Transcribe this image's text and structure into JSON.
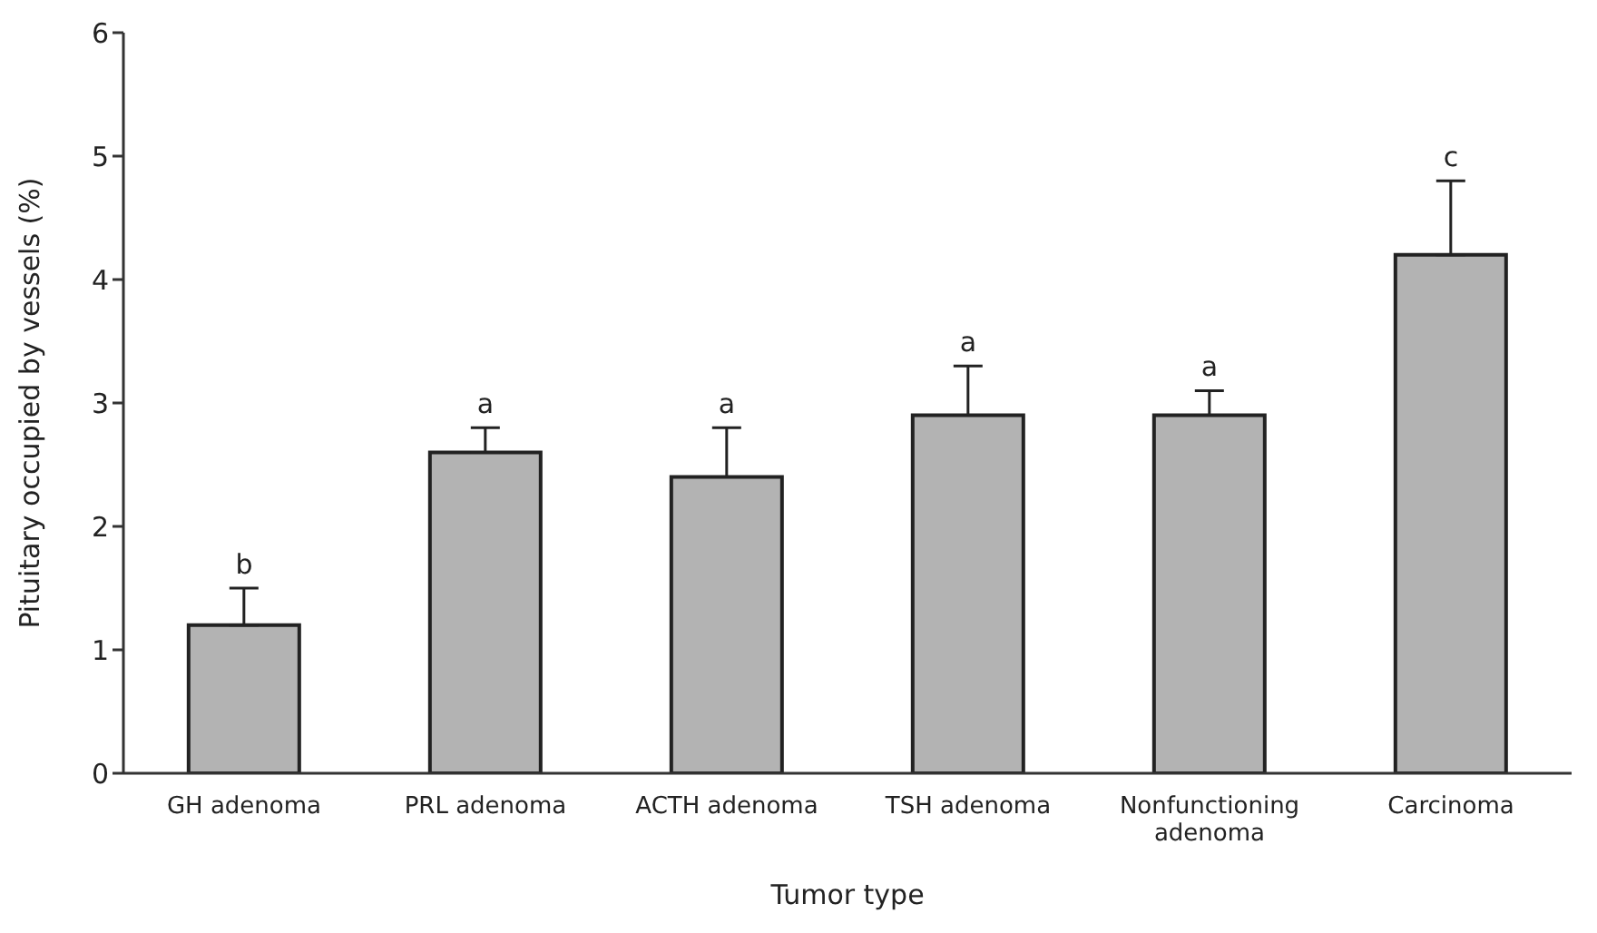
{
  "chart_data": {
    "type": "bar",
    "xlabel": "Tumor type",
    "ylabel": "Pituitary occupied by vessels (%)",
    "categories": [
      "GH adenoma",
      "PRL adenoma",
      "ACTH adenoma",
      "TSH adenoma",
      "Nonfunctioning adenoma",
      "Carcinoma"
    ],
    "values": [
      1.2,
      2.6,
      2.4,
      2.9,
      2.9,
      4.2
    ],
    "errors": [
      [
        1.2,
        1.5
      ],
      [
        2.6,
        2.8
      ],
      [
        2.4,
        2.8
      ],
      [
        2.9,
        3.3
      ],
      [
        2.9,
        3.1
      ],
      [
        4.2,
        4.8
      ]
    ],
    "color": "#b3b3b3",
    "ylim": [
      0,
      6
    ],
    "yticks": [
      0,
      1,
      2,
      3,
      4,
      5,
      6
    ],
    "grid": false,
    "legend": false,
    "annotations": [
      {
        "text": "b",
        "x": "GH adenoma",
        "y": 1.5
      },
      {
        "text": "a",
        "x": "PRL adenoma",
        "y": 2.8
      },
      {
        "text": "a",
        "x": "ACTH adenoma",
        "y": 2.8
      },
      {
        "text": "a",
        "x": "TSH adenoma",
        "y": 3.3
      },
      {
        "text": "a",
        "x": "Nonfunctioning adenoma",
        "y": 3.1
      },
      {
        "text": "c",
        "x": "Carcinoma",
        "y": 4.8
      }
    ]
  }
}
